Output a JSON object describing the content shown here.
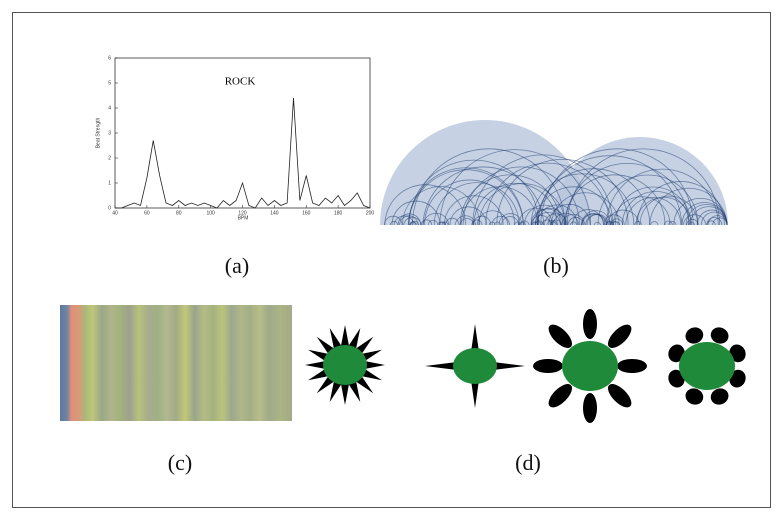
{
  "chart_data": {
    "type": "line",
    "title": "ROCK",
    "x_label": "BPM",
    "y_label": "Beat Strength",
    "x": [
      40,
      44,
      48,
      52,
      56,
      60,
      64,
      68,
      72,
      76,
      80,
      84,
      88,
      92,
      96,
      100,
      104,
      108,
      112,
      116,
      120,
      124,
      128,
      132,
      136,
      140,
      144,
      148,
      152,
      156,
      160,
      164,
      168,
      172,
      176,
      180,
      184,
      188,
      192,
      196,
      200
    ],
    "values": [
      0,
      0,
      0.1,
      0.2,
      0.1,
      1.2,
      2.7,
      1.3,
      0.2,
      0.1,
      0.3,
      0.1,
      0.2,
      0.1,
      0.2,
      0.1,
      0,
      0.3,
      0.1,
      0.3,
      1.0,
      0.1,
      0,
      0.4,
      0.1,
      0.3,
      0.1,
      0.2,
      4.4,
      0.3,
      1.3,
      0.2,
      0.1,
      0.4,
      0.2,
      0.5,
      0.1,
      0.3,
      0.6,
      0.1,
      0
    ],
    "color": "#222222",
    "xlim": [
      40,
      200
    ],
    "ylim": [
      0,
      6
    ],
    "xticks": [
      40,
      60,
      80,
      100,
      120,
      140,
      160,
      180,
      200
    ],
    "yticks": [
      0,
      1,
      2,
      3,
      4,
      5,
      6
    ]
  },
  "panels": {
    "a": "(a)",
    "b": "(b)",
    "c": "(c)",
    "d": "(d)"
  }
}
